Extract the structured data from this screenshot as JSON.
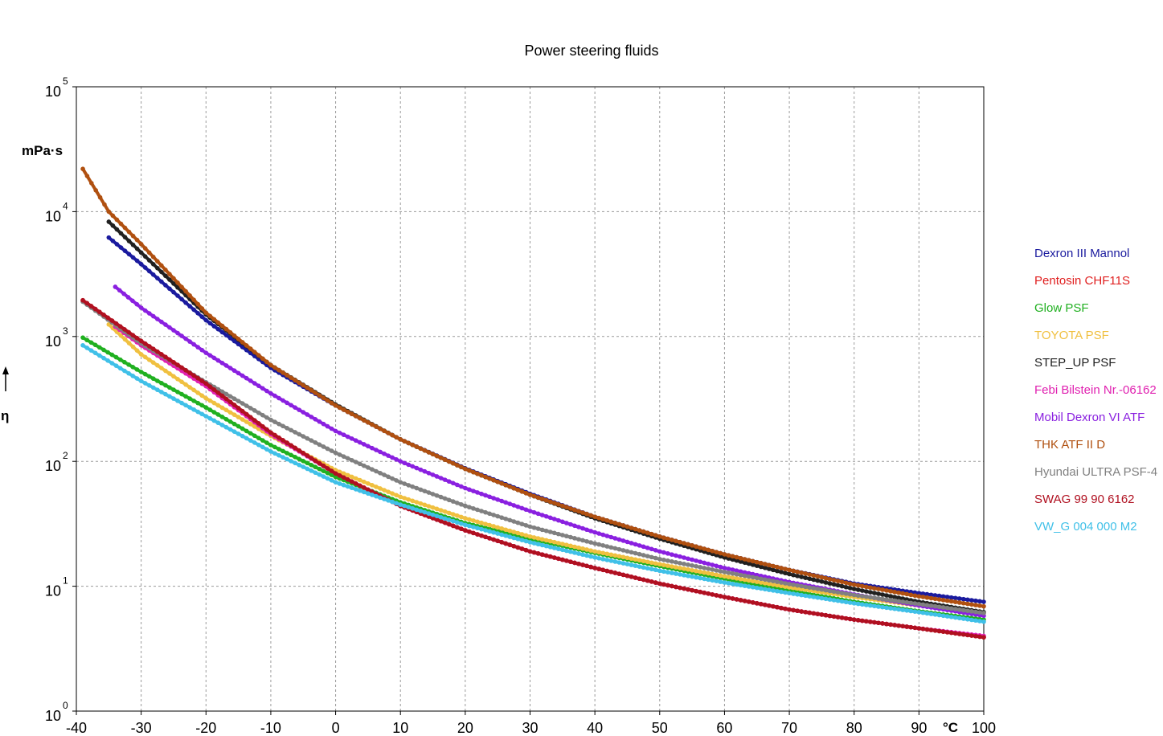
{
  "chart_data": {
    "type": "line",
    "title": "Power steering fluids",
    "ylabel": "η",
    "yunit": "mPa·s",
    "xunit": "°C",
    "x_scale": "linear",
    "y_scale": "log",
    "xlim": [
      -40,
      100
    ],
    "ylim": [
      1,
      100000
    ],
    "grid": true,
    "legend_position": "right",
    "x_ticks": [
      -40,
      -30,
      -20,
      -10,
      0,
      10,
      20,
      30,
      40,
      50,
      60,
      70,
      80,
      90,
      100
    ],
    "x_tick_labels": [
      "-40",
      "-30",
      "-20",
      "-10",
      "0",
      "10",
      "20",
      "30",
      "40",
      "50",
      "60",
      "70",
      "80",
      "90",
      "100"
    ],
    "y_ticks": [
      {
        "value": 1,
        "base": "10",
        "exp": "0"
      },
      {
        "value": 10,
        "base": "10",
        "exp": "1"
      },
      {
        "value": 100,
        "base": "10",
        "exp": "2"
      },
      {
        "value": 1000,
        "base": "10",
        "exp": "3"
      },
      {
        "value": 10000,
        "base": "10",
        "exp": "4"
      },
      {
        "value": 100000,
        "base": "10",
        "exp": "5"
      }
    ],
    "series": [
      {
        "name": "Dexron III Mannol",
        "color": "#1a1a9e",
        "x": [
          -35,
          -30,
          -20,
          -10,
          0,
          10,
          20,
          30,
          40,
          50,
          60,
          70,
          80,
          90,
          100
        ],
        "y": [
          6200,
          3800,
          1350,
          560,
          280,
          150,
          88,
          55,
          36,
          25,
          18,
          13.5,
          10.5,
          8.8,
          7.5
        ]
      },
      {
        "name": "Pentosin CHF11S",
        "color": "#e02020",
        "x": [
          -39,
          -30,
          -20,
          -10,
          0,
          10,
          20,
          30,
          40,
          50,
          60,
          70,
          80,
          90,
          100
        ],
        "y": [
          1950,
          920,
          420,
          170,
          80,
          44,
          28,
          19,
          14,
          10.5,
          8.2,
          6.5,
          5.4,
          4.6,
          3.9
        ]
      },
      {
        "name": "Glow PSF",
        "color": "#20b020",
        "x": [
          -39,
          -30,
          -20,
          -10,
          0,
          10,
          20,
          30,
          40,
          50,
          60,
          70,
          80,
          90,
          100
        ],
        "y": [
          980,
          520,
          270,
          135,
          75,
          47,
          32,
          24,
          18.5,
          14.5,
          11.5,
          9.2,
          7.5,
          6.3,
          5.4
        ]
      },
      {
        "name": "TOYOTA PSF",
        "color": "#f0c040",
        "x": [
          -35,
          -30,
          -20,
          -10,
          0,
          10,
          20,
          30,
          40,
          50,
          60,
          70,
          80,
          90,
          100
        ],
        "y": [
          1250,
          720,
          320,
          160,
          85,
          52,
          35,
          25,
          19,
          15,
          12,
          9.8,
          8.2,
          7,
          6.1
        ]
      },
      {
        "name": "STEP_UP PSF",
        "color": "#202020",
        "x": [
          -35,
          -30,
          -20,
          -10,
          0,
          10,
          20,
          30,
          40,
          50,
          60,
          70,
          80,
          90,
          100
        ],
        "y": [
          8300,
          4700,
          1500,
          590,
          285,
          150,
          87,
          54,
          35,
          24,
          17,
          12.5,
          9.5,
          7.5,
          6.2
        ]
      },
      {
        "name": "Febi Bilstein Nr.-06162",
        "color": "#e020b0",
        "x": [
          -34,
          -30,
          -20,
          -10,
          0,
          10,
          20,
          30,
          40,
          50,
          60,
          70,
          80,
          90,
          100
        ],
        "y": [
          1200,
          850,
          400,
          165,
          80,
          44,
          28,
          19,
          14,
          10.5,
          8.2,
          6.5,
          5.4,
          4.6,
          4.0
        ]
      },
      {
        "name": "Mobil Dexron VI  ATF",
        "color": "#8a20e0",
        "x": [
          -34,
          -30,
          -20,
          -10,
          0,
          10,
          20,
          30,
          40,
          50,
          60,
          70,
          80,
          90,
          100
        ],
        "y": [
          2500,
          1700,
          740,
          350,
          175,
          100,
          61,
          40,
          27,
          19,
          14,
          10.8,
          8.6,
          7,
          5.8
        ]
      },
      {
        "name": "THK ATF II D",
        "color": "#b05010",
        "x": [
          -39,
          -35,
          -30,
          -20,
          -10,
          0,
          10,
          20,
          30,
          40,
          50,
          60,
          70,
          80,
          90,
          100
        ],
        "y": [
          22000,
          10000,
          5500,
          1550,
          590,
          280,
          150,
          87,
          54,
          36,
          25,
          18,
          13.5,
          10.3,
          8.3,
          6.9
        ]
      },
      {
        "name": "Hyundai ULTRA PSF-4",
        "color": "#808080",
        "x": [
          -39,
          -30,
          -20,
          -10,
          0,
          10,
          20,
          30,
          40,
          50,
          60,
          70,
          80,
          90,
          100
        ],
        "y": [
          1900,
          880,
          430,
          215,
          117,
          68,
          44,
          30,
          22,
          16.5,
          13,
          10.4,
          8.5,
          7.2,
          6.1
        ]
      },
      {
        "name": "SWAG 99 90 6162",
        "color": "#b01020",
        "x": [
          -39,
          -30,
          -20,
          -10,
          0,
          10,
          20,
          30,
          40,
          50,
          60,
          70,
          80,
          90,
          100
        ],
        "y": [
          1950,
          920,
          420,
          170,
          80,
          44,
          28,
          19,
          14,
          10.5,
          8.2,
          6.5,
          5.4,
          4.6,
          3.9
        ]
      },
      {
        "name": "VW_G 004 000 M2",
        "color": "#40c0e8",
        "x": [
          -39,
          -30,
          -20,
          -10,
          0,
          10,
          20,
          30,
          40,
          50,
          60,
          70,
          80,
          90,
          100
        ],
        "y": [
          850,
          440,
          230,
          120,
          68,
          45,
          31,
          22.5,
          17,
          13.3,
          10.7,
          8.8,
          7.3,
          6.2,
          5.2
        ]
      }
    ]
  }
}
